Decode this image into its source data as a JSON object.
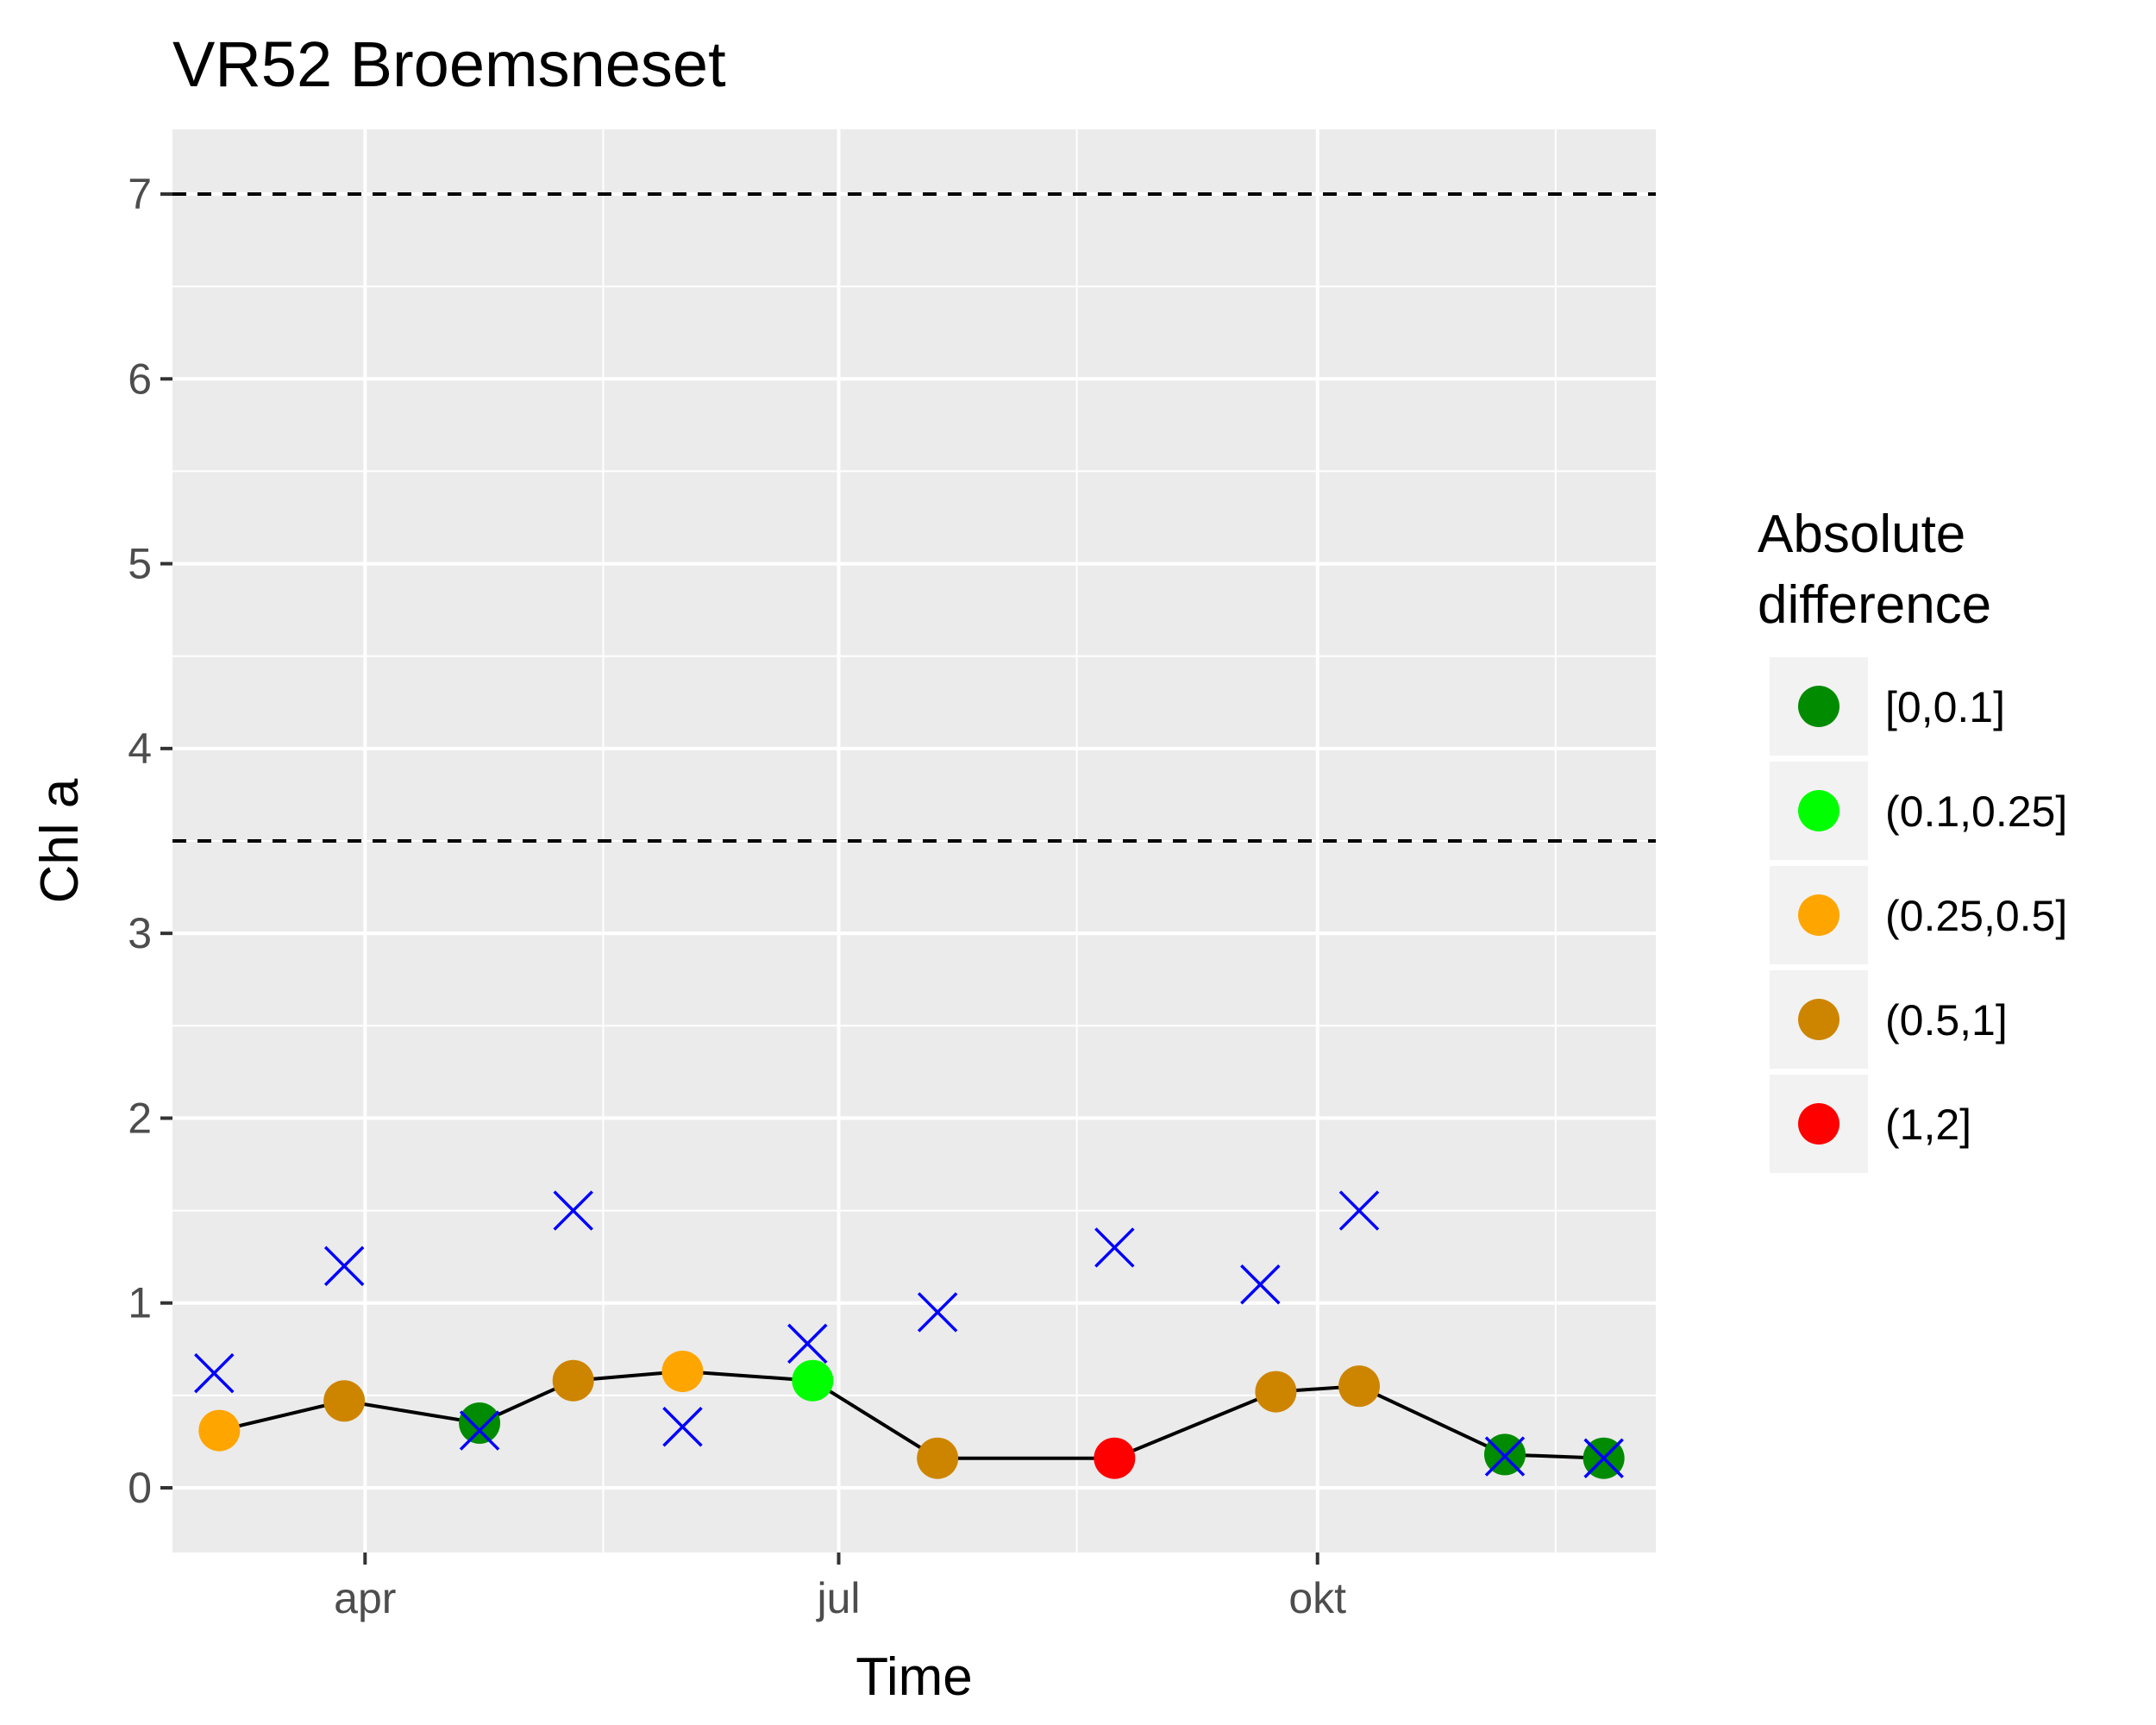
{
  "chart_data": {
    "type": "scatter",
    "title": "VR52 Broemsneset",
    "xlabel": "Time",
    "ylabel": "Chl a",
    "ylim": [
      -0.35,
      7.35
    ],
    "xlim": [
      "2019-02-23",
      "2019-12-05"
    ],
    "y_ticks": [
      0,
      1,
      2,
      3,
      4,
      5,
      6,
      7
    ],
    "x_ticks": [
      {
        "date": "2019-04-01",
        "label": "apr"
      },
      {
        "date": "2019-07-01",
        "label": "jul"
      },
      {
        "date": "2019-10-01",
        "label": "okt"
      }
    ],
    "grid": true,
    "background": "#ebebeb",
    "thresholds": [
      {
        "value": 7.0,
        "style": "dashed",
        "color": "#000000"
      },
      {
        "value": 3.5,
        "style": "dashed",
        "color": "#000000"
      }
    ],
    "series": [
      {
        "kind": "observed",
        "marker": "circle",
        "line_color": "#000000",
        "points": [
          {
            "x": "2019-03-04",
            "y": 0.31,
            "class": "(0.25,0.5]"
          },
          {
            "x": "2019-03-28",
            "y": 0.47,
            "class": "(0.5,1]"
          },
          {
            "x": "2019-04-23",
            "y": 0.35,
            "class": "[0,0.1]"
          },
          {
            "x": "2019-05-11",
            "y": 0.58,
            "class": "(0.5,1]"
          },
          {
            "x": "2019-06-01",
            "y": 0.63,
            "class": "(0.25,0.5]"
          },
          {
            "x": "2019-06-26",
            "y": 0.58,
            "class": "(0.1,0.25]"
          },
          {
            "x": "2019-07-20",
            "y": 0.16,
            "class": "(0.5,1]"
          },
          {
            "x": "2019-08-23",
            "y": 0.16,
            "class": "(1,2]"
          },
          {
            "x": "2019-09-23",
            "y": 0.52,
            "class": "(0.5,1]"
          },
          {
            "x": "2019-10-09",
            "y": 0.55,
            "class": "(0.5,1]"
          },
          {
            "x": "2019-11-06",
            "y": 0.18,
            "class": "[0,0.1]"
          },
          {
            "x": "2019-11-25",
            "y": 0.16,
            "class": "[0,0.1]"
          }
        ]
      },
      {
        "kind": "reference",
        "marker": "x",
        "color": "#0000ff",
        "points": [
          {
            "x": "2019-03-03",
            "y": 0.62
          },
          {
            "x": "2019-03-28",
            "y": 1.2
          },
          {
            "x": "2019-04-23",
            "y": 0.31
          },
          {
            "x": "2019-05-11",
            "y": 1.5
          },
          {
            "x": "2019-06-01",
            "y": 0.33
          },
          {
            "x": "2019-06-25",
            "y": 0.78
          },
          {
            "x": "2019-07-20",
            "y": 0.95
          },
          {
            "x": "2019-08-23",
            "y": 1.3
          },
          {
            "x": "2019-09-20",
            "y": 1.1
          },
          {
            "x": "2019-10-09",
            "y": 1.5
          },
          {
            "x": "2019-11-06",
            "y": 0.17
          },
          {
            "x": "2019-11-25",
            "y": 0.16
          }
        ]
      }
    ],
    "legend": {
      "title_lines": [
        "Absolute",
        "difference"
      ],
      "placement": "right",
      "entries": [
        {
          "label": "[0,0.1]",
          "color": "#008b00"
        },
        {
          "label": "(0.1,0.25]",
          "color": "#00ff00"
        },
        {
          "label": "(0.25,0.5]",
          "color": "#ffa500"
        },
        {
          "label": "(0.5,1]",
          "color": "#cd8500"
        },
        {
          "label": "(1,2]",
          "color": "#ff0000"
        }
      ]
    }
  }
}
